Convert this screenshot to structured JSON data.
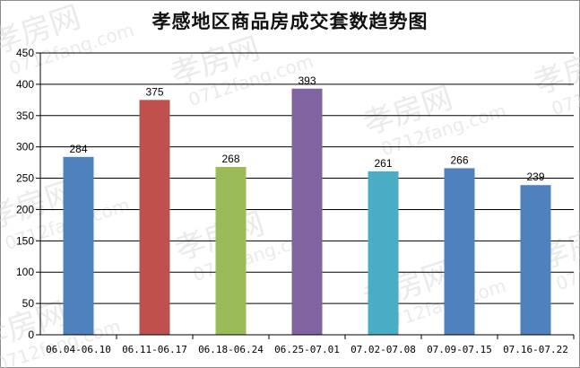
{
  "chart_data": {
    "type": "bar",
    "title": "孝感地区商品房成交套数趋势图",
    "categories": [
      "06.04-06.10",
      "06.11-06.17",
      "06.18-06.24",
      "06.25-07.01",
      "07.02-07.08",
      "07.09-07.15",
      "07.16-07.22"
    ],
    "values": [
      284,
      375,
      268,
      393,
      261,
      266,
      239
    ],
    "colors": [
      "#4f81bd",
      "#c0504d",
      "#9bbb59",
      "#8064a2",
      "#4bacc6",
      "#4f81bd",
      "#4f81bd"
    ],
    "ylim": [
      0,
      450
    ],
    "yticks": [
      0,
      50,
      100,
      150,
      200,
      250,
      300,
      350,
      400,
      450
    ],
    "grid": true,
    "legend": "none"
  },
  "watermark": {
    "text": "孝房网",
    "subtext": "0712fang.com"
  }
}
